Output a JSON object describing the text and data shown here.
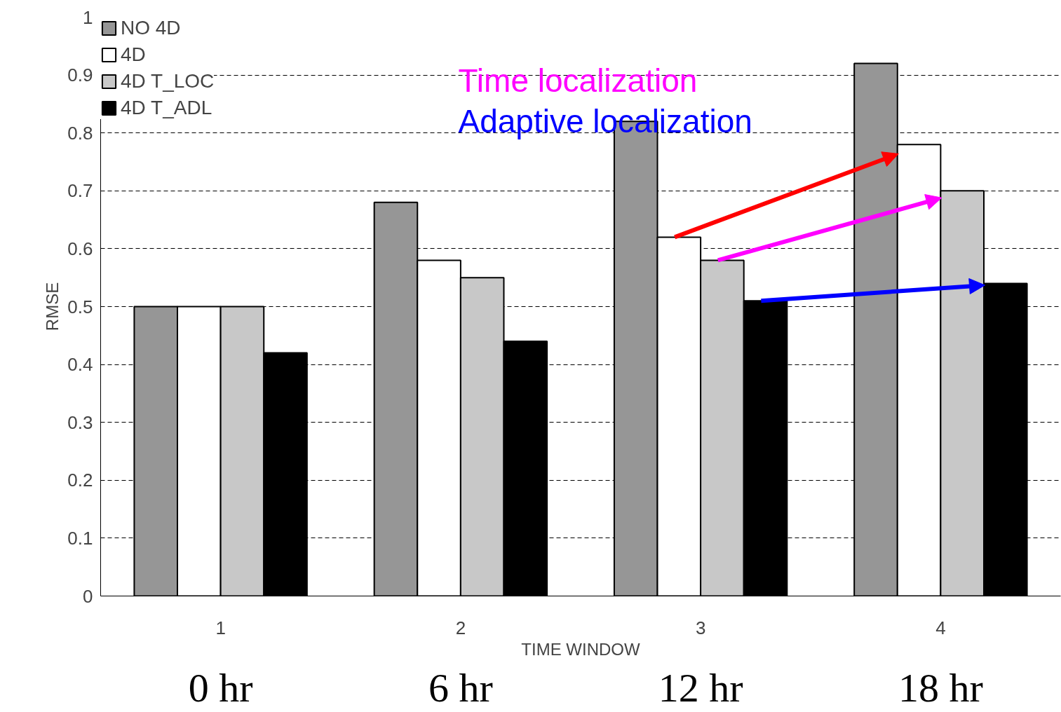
{
  "chart_data": {
    "type": "bar",
    "xlabel": "TIME WINDOW",
    "ylabel": "RMSE",
    "categories": [
      "1",
      "2",
      "3",
      "4"
    ],
    "series": [
      {
        "name": "NO 4D",
        "color": "#969696",
        "values": [
          0.5,
          0.68,
          0.82,
          0.92
        ]
      },
      {
        "name": "4D",
        "color": "#ffffff",
        "values": [
          0.5,
          0.58,
          0.62,
          0.78
        ]
      },
      {
        "name": "4D T_LOC",
        "color": "#c8c8c8",
        "values": [
          0.5,
          0.55,
          0.58,
          0.7
        ]
      },
      {
        "name": "4D T_ADL",
        "color": "#000000",
        "values": [
          0.42,
          0.44,
          0.51,
          0.54
        ]
      }
    ],
    "ylim": [
      0,
      1
    ],
    "yticks": [
      0,
      0.1,
      0.2,
      0.3,
      0.4,
      0.5,
      0.6,
      0.7,
      0.8,
      0.9,
      1
    ],
    "grid": "y",
    "legend": "top left",
    "annotations": [
      "Time localization",
      "Adaptive localization",
      "0 hr",
      "6 hr",
      "12 hr",
      "18 hr"
    ]
  }
}
